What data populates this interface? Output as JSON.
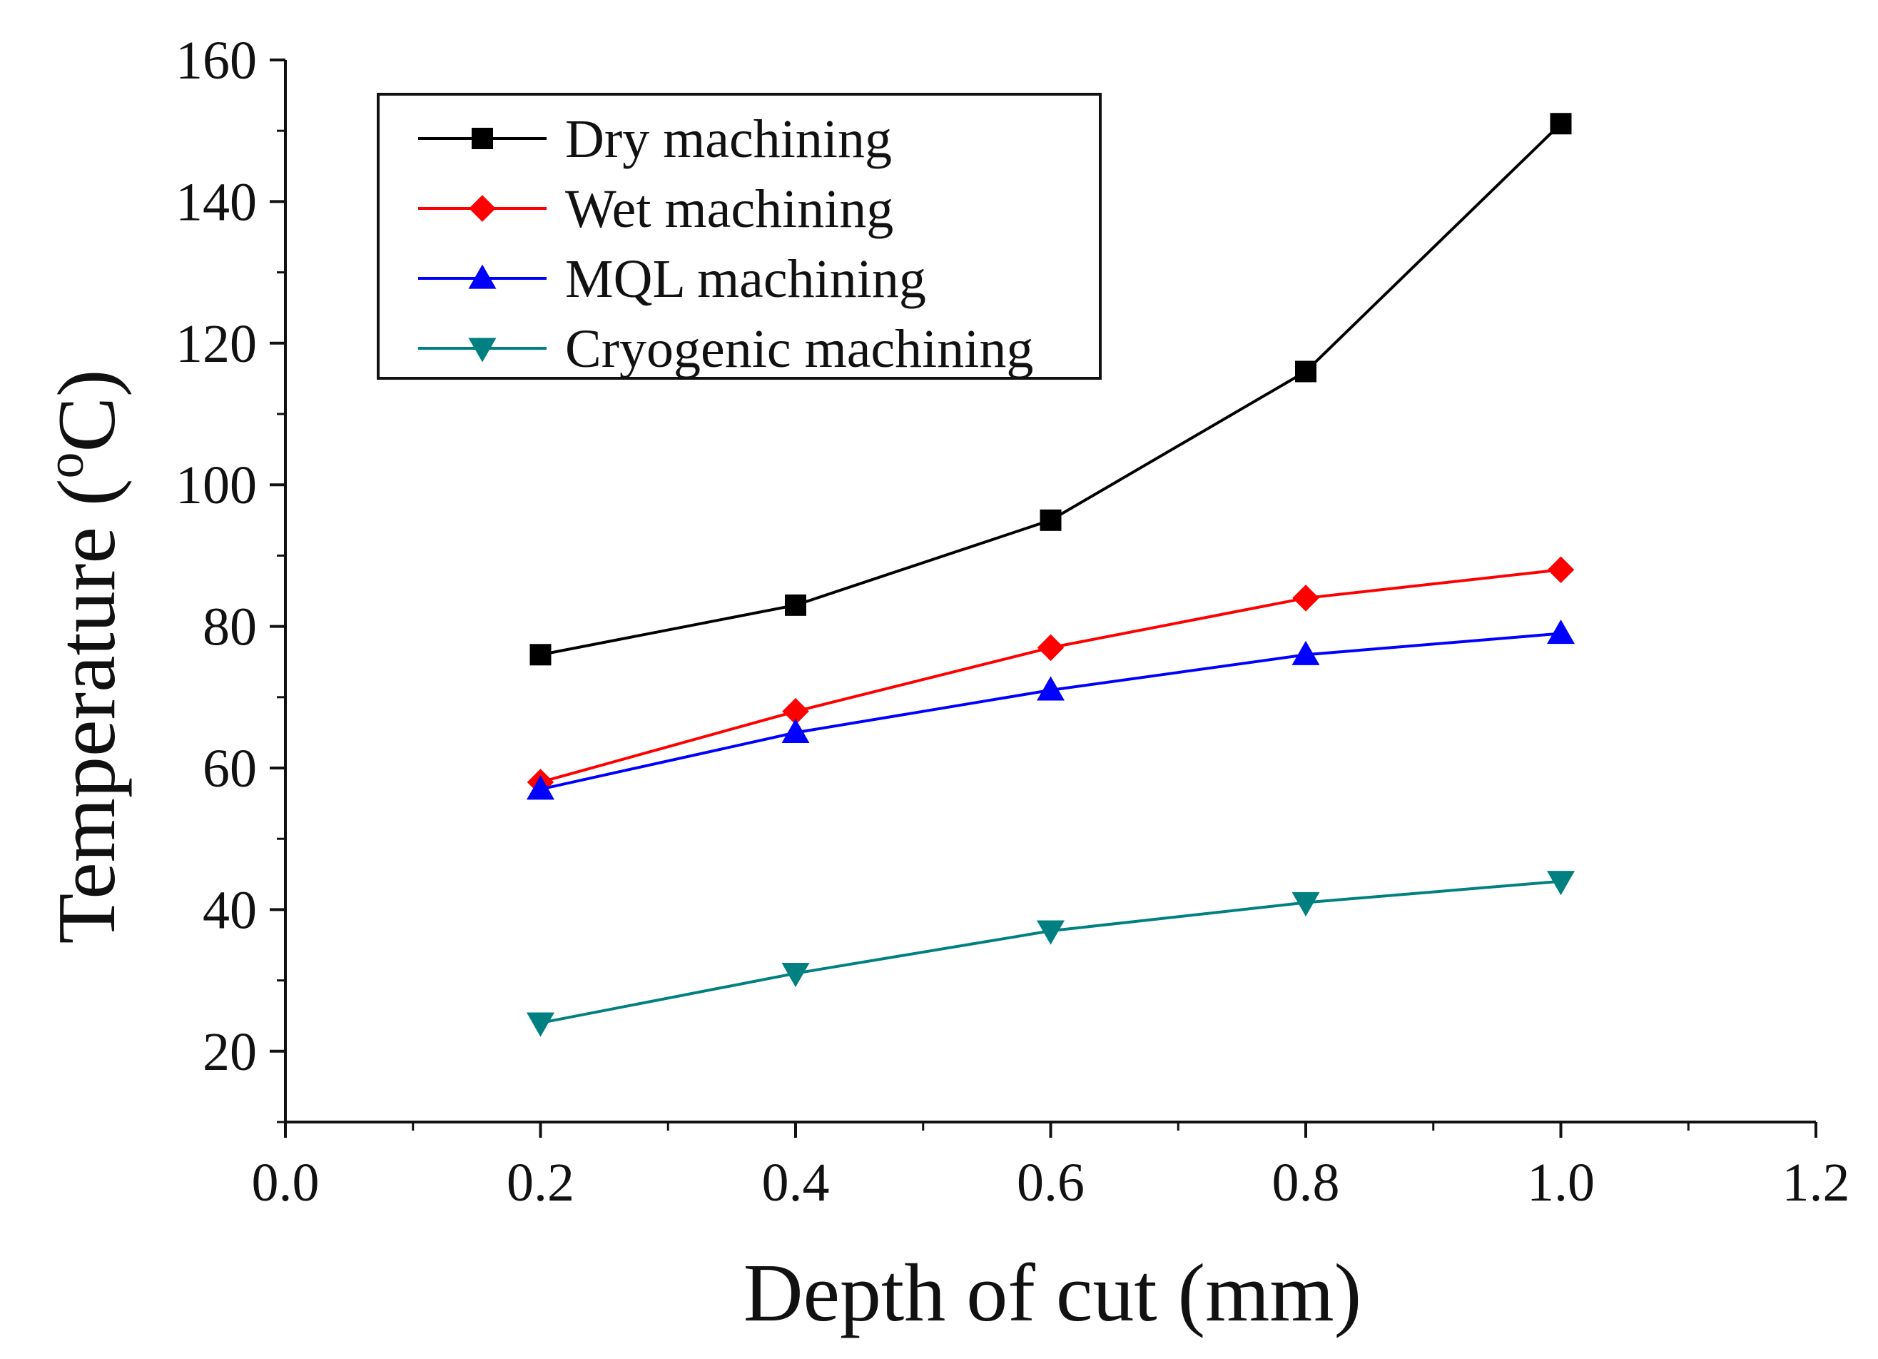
{
  "chart_data": {
    "type": "line",
    "title": "",
    "xlabel": "Depth of cut (mm)",
    "ylabel_main": "Temperature (",
    "ylabel_sup": "o",
    "ylabel_end": "C)",
    "xlim": [
      0.0,
      1.2
    ],
    "ylim": [
      10,
      160
    ],
    "x_ticks": [
      0.0,
      0.2,
      0.4,
      0.6,
      0.8,
      1.0,
      1.2
    ],
    "x_tick_labels": [
      "0.0",
      "0.2",
      "0.4",
      "0.6",
      "0.8",
      "1.0",
      "1.2"
    ],
    "y_ticks": [
      20,
      40,
      60,
      80,
      100,
      120,
      140,
      160
    ],
    "y_tick_labels": [
      "20",
      "40",
      "60",
      "80",
      "100",
      "120",
      "140",
      "160"
    ],
    "grid": false,
    "legend_position": "top-left",
    "x": [
      0.2,
      0.4,
      0.6,
      0.8,
      1.0
    ],
    "series": [
      {
        "name": "Dry machining",
        "values": [
          76,
          83,
          95,
          116,
          151
        ],
        "color": "#000000",
        "marker": "square"
      },
      {
        "name": "Wet machining",
        "values": [
          58,
          68,
          77,
          84,
          88
        ],
        "color": "#ff0000",
        "marker": "diamond"
      },
      {
        "name": "MQL machining",
        "values": [
          57,
          65,
          71,
          76,
          79
        ],
        "color": "#0000ff",
        "marker": "triangle-up"
      },
      {
        "name": "Cryogenic machining",
        "values": [
          24,
          31,
          37,
          41,
          44
        ],
        "color": "#008080",
        "marker": "triangle-down"
      }
    ]
  }
}
